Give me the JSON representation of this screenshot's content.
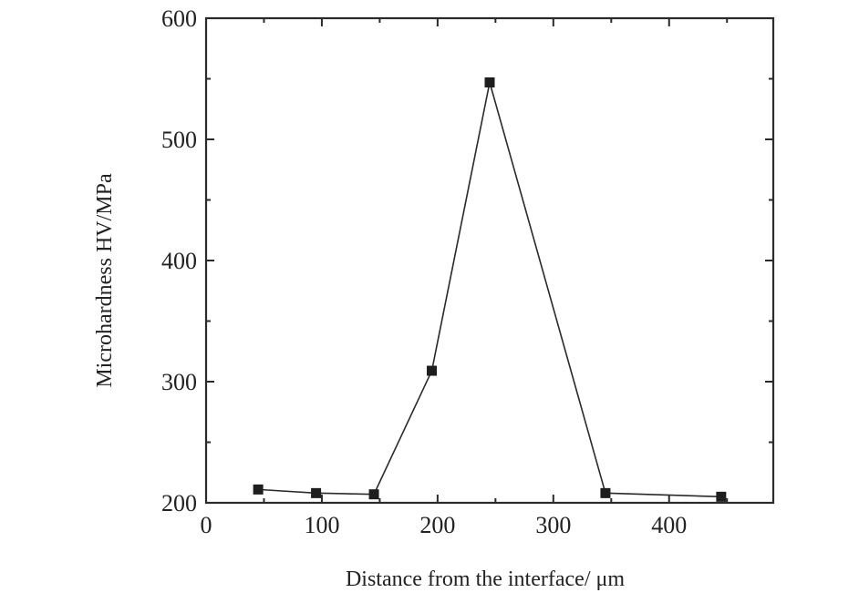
{
  "chart_data": {
    "type": "line",
    "title": "",
    "xlabel": "Distance from the interface/ μm",
    "ylabel": "Microhardness HV/MPa",
    "xlim": [
      0,
      490
    ],
    "ylim": [
      200,
      600
    ],
    "x_ticks": [
      0,
      100,
      200,
      300,
      400
    ],
    "x_tick_labels": [
      "0",
      "100",
      "200",
      "300",
      "400"
    ],
    "y_ticks": [
      200,
      300,
      400,
      500,
      600
    ],
    "y_tick_labels": [
      "200",
      "300",
      "400",
      "500",
      "600"
    ],
    "x_minor_step": 50,
    "y_minor_step": 50,
    "grid": false,
    "marker": "square",
    "line_color": "#2a2a2a",
    "series": [
      {
        "x": [
          45,
          95,
          145,
          195,
          245,
          345,
          445
        ],
        "values": [
          211,
          208,
          207,
          309,
          547,
          208,
          205
        ]
      }
    ]
  }
}
